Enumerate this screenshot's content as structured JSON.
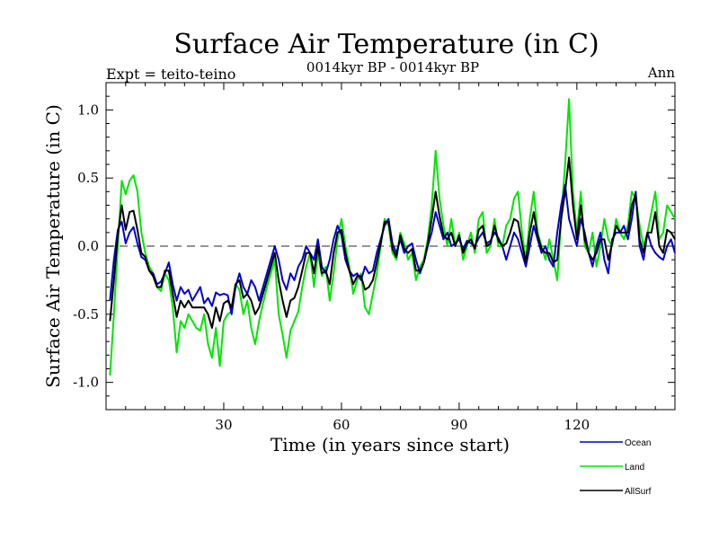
{
  "chart_data": {
    "type": "line",
    "title": "Surface Air Temperature (in C)",
    "subtitle": "0014kyr BP - 0014kyr BP",
    "left_label": "Expt = teito-teino",
    "right_label": "Ann",
    "xlabel": "Time (in years since start)",
    "ylabel": "Surface Air Temperature (in C)",
    "xlim": [
      0,
      145
    ],
    "ylim": [
      -1.2,
      1.2
    ],
    "x_ticks": [
      30,
      60,
      90,
      120
    ],
    "x_tick_labels": [
      "30",
      "60",
      "90",
      "120"
    ],
    "y_ticks": [
      -1.0,
      -0.5,
      0.0,
      0.5,
      1.0
    ],
    "y_tick_labels": [
      "-1.0",
      "-0.5",
      "0.0",
      "0.5",
      "1.0"
    ],
    "reference_line": 0.0,
    "x": [
      1,
      2,
      3,
      4,
      5,
      6,
      7,
      8,
      9,
      10,
      11,
      12,
      13,
      14,
      15,
      16,
      17,
      18,
      19,
      20,
      21,
      22,
      23,
      24,
      25,
      26,
      27,
      28,
      29,
      30,
      31,
      32,
      33,
      34,
      35,
      36,
      37,
      38,
      39,
      40,
      41,
      42,
      43,
      44,
      45,
      46,
      47,
      48,
      49,
      50,
      51,
      52,
      53,
      54,
      55,
      56,
      57,
      58,
      59,
      60,
      61,
      62,
      63,
      64,
      65,
      66,
      67,
      68,
      69,
      70,
      71,
      72,
      73,
      74,
      75,
      76,
      77,
      78,
      79,
      80,
      81,
      82,
      83,
      84,
      85,
      86,
      87,
      88,
      89,
      90,
      91,
      92,
      93,
      94,
      95,
      96,
      97,
      98,
      99,
      100,
      101,
      102,
      103,
      104,
      105,
      106,
      107,
      108,
      109,
      110,
      111,
      112,
      113,
      114,
      115,
      116,
      117,
      118,
      119,
      120,
      121,
      122,
      123,
      124,
      125,
      126,
      127,
      128,
      129,
      130,
      131,
      132,
      133,
      134,
      135,
      136,
      137,
      138,
      139,
      140,
      141,
      142,
      143,
      144,
      145
    ],
    "series": [
      {
        "name": "Ocean",
        "color": "#0000cc",
        "values": [
          -0.4,
          -0.1,
          0.12,
          0.18,
          0.02,
          0.1,
          0.14,
          0.02,
          -0.08,
          -0.1,
          -0.18,
          -0.2,
          -0.28,
          -0.26,
          -0.2,
          -0.12,
          -0.28,
          -0.4,
          -0.3,
          -0.35,
          -0.32,
          -0.4,
          -0.35,
          -0.3,
          -0.42,
          -0.38,
          -0.44,
          -0.34,
          -0.36,
          -0.35,
          -0.36,
          -0.5,
          -0.3,
          -0.2,
          -0.3,
          -0.35,
          -0.25,
          -0.3,
          -0.4,
          -0.3,
          -0.2,
          -0.1,
          0.0,
          -0.1,
          -0.25,
          -0.32,
          -0.2,
          -0.25,
          -0.15,
          -0.1,
          0.0,
          -0.05,
          -0.1,
          0.05,
          -0.15,
          -0.2,
          -0.1,
          0.05,
          0.15,
          0.08,
          -0.1,
          -0.18,
          -0.22,
          -0.2,
          -0.25,
          -0.15,
          -0.2,
          -0.18,
          -0.05,
          0.05,
          0.15,
          0.2,
          0.02,
          -0.05,
          0.05,
          -0.05,
          0.0,
          0.02,
          -0.1,
          -0.2,
          -0.12,
          0.0,
          0.1,
          0.25,
          0.15,
          0.05,
          0.1,
          0.0,
          0.02,
          0.05,
          -0.02,
          0.04,
          0.02,
          0.0,
          0.06,
          0.1,
          0.02,
          0.04,
          0.1,
          0.06,
          0.0,
          -0.1,
          0.0,
          0.1,
          0.05,
          -0.05,
          -0.15,
          0.0,
          0.15,
          0.05,
          -0.05,
          0.0,
          -0.1,
          -0.15,
          0.1,
          0.3,
          0.45,
          0.2,
          0.1,
          0.0,
          0.2,
          0.1,
          -0.05,
          -0.15,
          0.0,
          0.1,
          -0.1,
          -0.2,
          0.05,
          0.1,
          0.1,
          0.15,
          0.05,
          0.2,
          0.4,
          0.0,
          -0.1,
          0.1,
          0.0,
          -0.05,
          -0.08,
          -0.1,
          0.0,
          0.05,
          -0.05
        ]
      },
      {
        "name": "Land",
        "color": "#00e600",
        "values": [
          -0.95,
          -0.5,
          0.0,
          0.48,
          0.38,
          0.48,
          0.52,
          0.4,
          0.1,
          -0.05,
          -0.15,
          -0.2,
          -0.3,
          -0.33,
          -0.2,
          -0.25,
          -0.45,
          -0.78,
          -0.55,
          -0.6,
          -0.5,
          -0.55,
          -0.6,
          -0.62,
          -0.5,
          -0.72,
          -0.82,
          -0.6,
          -0.88,
          -0.55,
          -0.5,
          -0.48,
          -0.28,
          -0.32,
          -0.5,
          -0.4,
          -0.6,
          -0.72,
          -0.55,
          -0.42,
          -0.3,
          -0.2,
          -0.1,
          -0.5,
          -0.65,
          -0.82,
          -0.62,
          -0.55,
          -0.48,
          -0.3,
          -0.15,
          -0.05,
          -0.3,
          -0.05,
          -0.22,
          -0.15,
          -0.4,
          -0.2,
          0.05,
          0.2,
          0.0,
          -0.15,
          -0.35,
          -0.25,
          -0.2,
          -0.45,
          -0.5,
          -0.35,
          -0.2,
          0.0,
          0.2,
          0.15,
          -0.05,
          -0.1,
          0.1,
          0.02,
          -0.1,
          -0.05,
          -0.25,
          -0.15,
          -0.1,
          0.05,
          0.3,
          0.7,
          0.35,
          0.15,
          0.0,
          0.2,
          0.0,
          0.1,
          -0.1,
          0.0,
          0.1,
          -0.05,
          0.2,
          0.25,
          -0.05,
          0.0,
          0.2,
          0.0,
          0.0,
          0.15,
          0.2,
          0.35,
          0.4,
          0.1,
          -0.1,
          0.2,
          0.4,
          0.1,
          0.0,
          -0.1,
          0.05,
          -0.1,
          -0.25,
          0.2,
          0.6,
          1.08,
          0.4,
          0.1,
          0.4,
          0.0,
          -0.05,
          0.1,
          -0.15,
          0.0,
          0.2,
          0.05,
          0.0,
          0.2,
          0.1,
          0.05,
          0.15,
          0.4,
          0.35,
          0.15,
          0.0,
          0.1,
          0.25,
          0.4,
          0.05,
          0.1,
          0.3,
          0.25,
          0.2
        ]
      },
      {
        "name": "AllSurf",
        "color": "#000000",
        "values": [
          -0.55,
          -0.25,
          0.08,
          0.3,
          0.12,
          0.25,
          0.26,
          0.12,
          -0.05,
          -0.08,
          -0.18,
          -0.22,
          -0.3,
          -0.3,
          -0.18,
          -0.18,
          -0.35,
          -0.52,
          -0.4,
          -0.45,
          -0.4,
          -0.45,
          -0.45,
          -0.45,
          -0.45,
          -0.5,
          -0.6,
          -0.45,
          -0.55,
          -0.42,
          -0.4,
          -0.45,
          -0.28,
          -0.25,
          -0.38,
          -0.35,
          -0.4,
          -0.5,
          -0.45,
          -0.35,
          -0.25,
          -0.15,
          -0.05,
          -0.25,
          -0.4,
          -0.52,
          -0.4,
          -0.38,
          -0.3,
          -0.18,
          -0.05,
          -0.05,
          -0.2,
          0.0,
          -0.2,
          -0.18,
          -0.28,
          -0.05,
          0.1,
          0.12,
          -0.05,
          -0.18,
          -0.28,
          -0.22,
          -0.22,
          -0.32,
          -0.3,
          -0.25,
          -0.12,
          0.02,
          0.18,
          0.18,
          -0.02,
          -0.08,
          0.08,
          -0.02,
          -0.05,
          -0.02,
          -0.18,
          -0.18,
          -0.12,
          0.02,
          0.2,
          0.4,
          0.22,
          0.08,
          0.05,
          0.1,
          0.0,
          0.08,
          -0.05,
          0.02,
          0.05,
          -0.02,
          0.12,
          0.15,
          0.0,
          0.02,
          0.15,
          0.04,
          0.0,
          0.02,
          0.1,
          0.2,
          0.18,
          0.02,
          -0.12,
          0.1,
          0.25,
          0.08,
          -0.02,
          -0.05,
          -0.05,
          -0.12,
          -0.1,
          0.2,
          0.4,
          0.65,
          0.3,
          0.05,
          0.3,
          0.05,
          -0.05,
          -0.1,
          -0.05,
          0.05,
          0.05,
          -0.1,
          0.02,
          0.15,
          0.1,
          0.1,
          0.1,
          0.3,
          0.38,
          0.05,
          -0.05,
          0.1,
          0.1,
          0.25,
          0.0,
          -0.05,
          0.12,
          0.1,
          0.05
        ]
      }
    ],
    "legend": [
      {
        "label": "Ocean",
        "color": "#0000cc"
      },
      {
        "label": "Land",
        "color": "#00e600"
      },
      {
        "label": "AllSurf",
        "color": "#000000"
      }
    ],
    "legend_position": "bottom-right"
  }
}
